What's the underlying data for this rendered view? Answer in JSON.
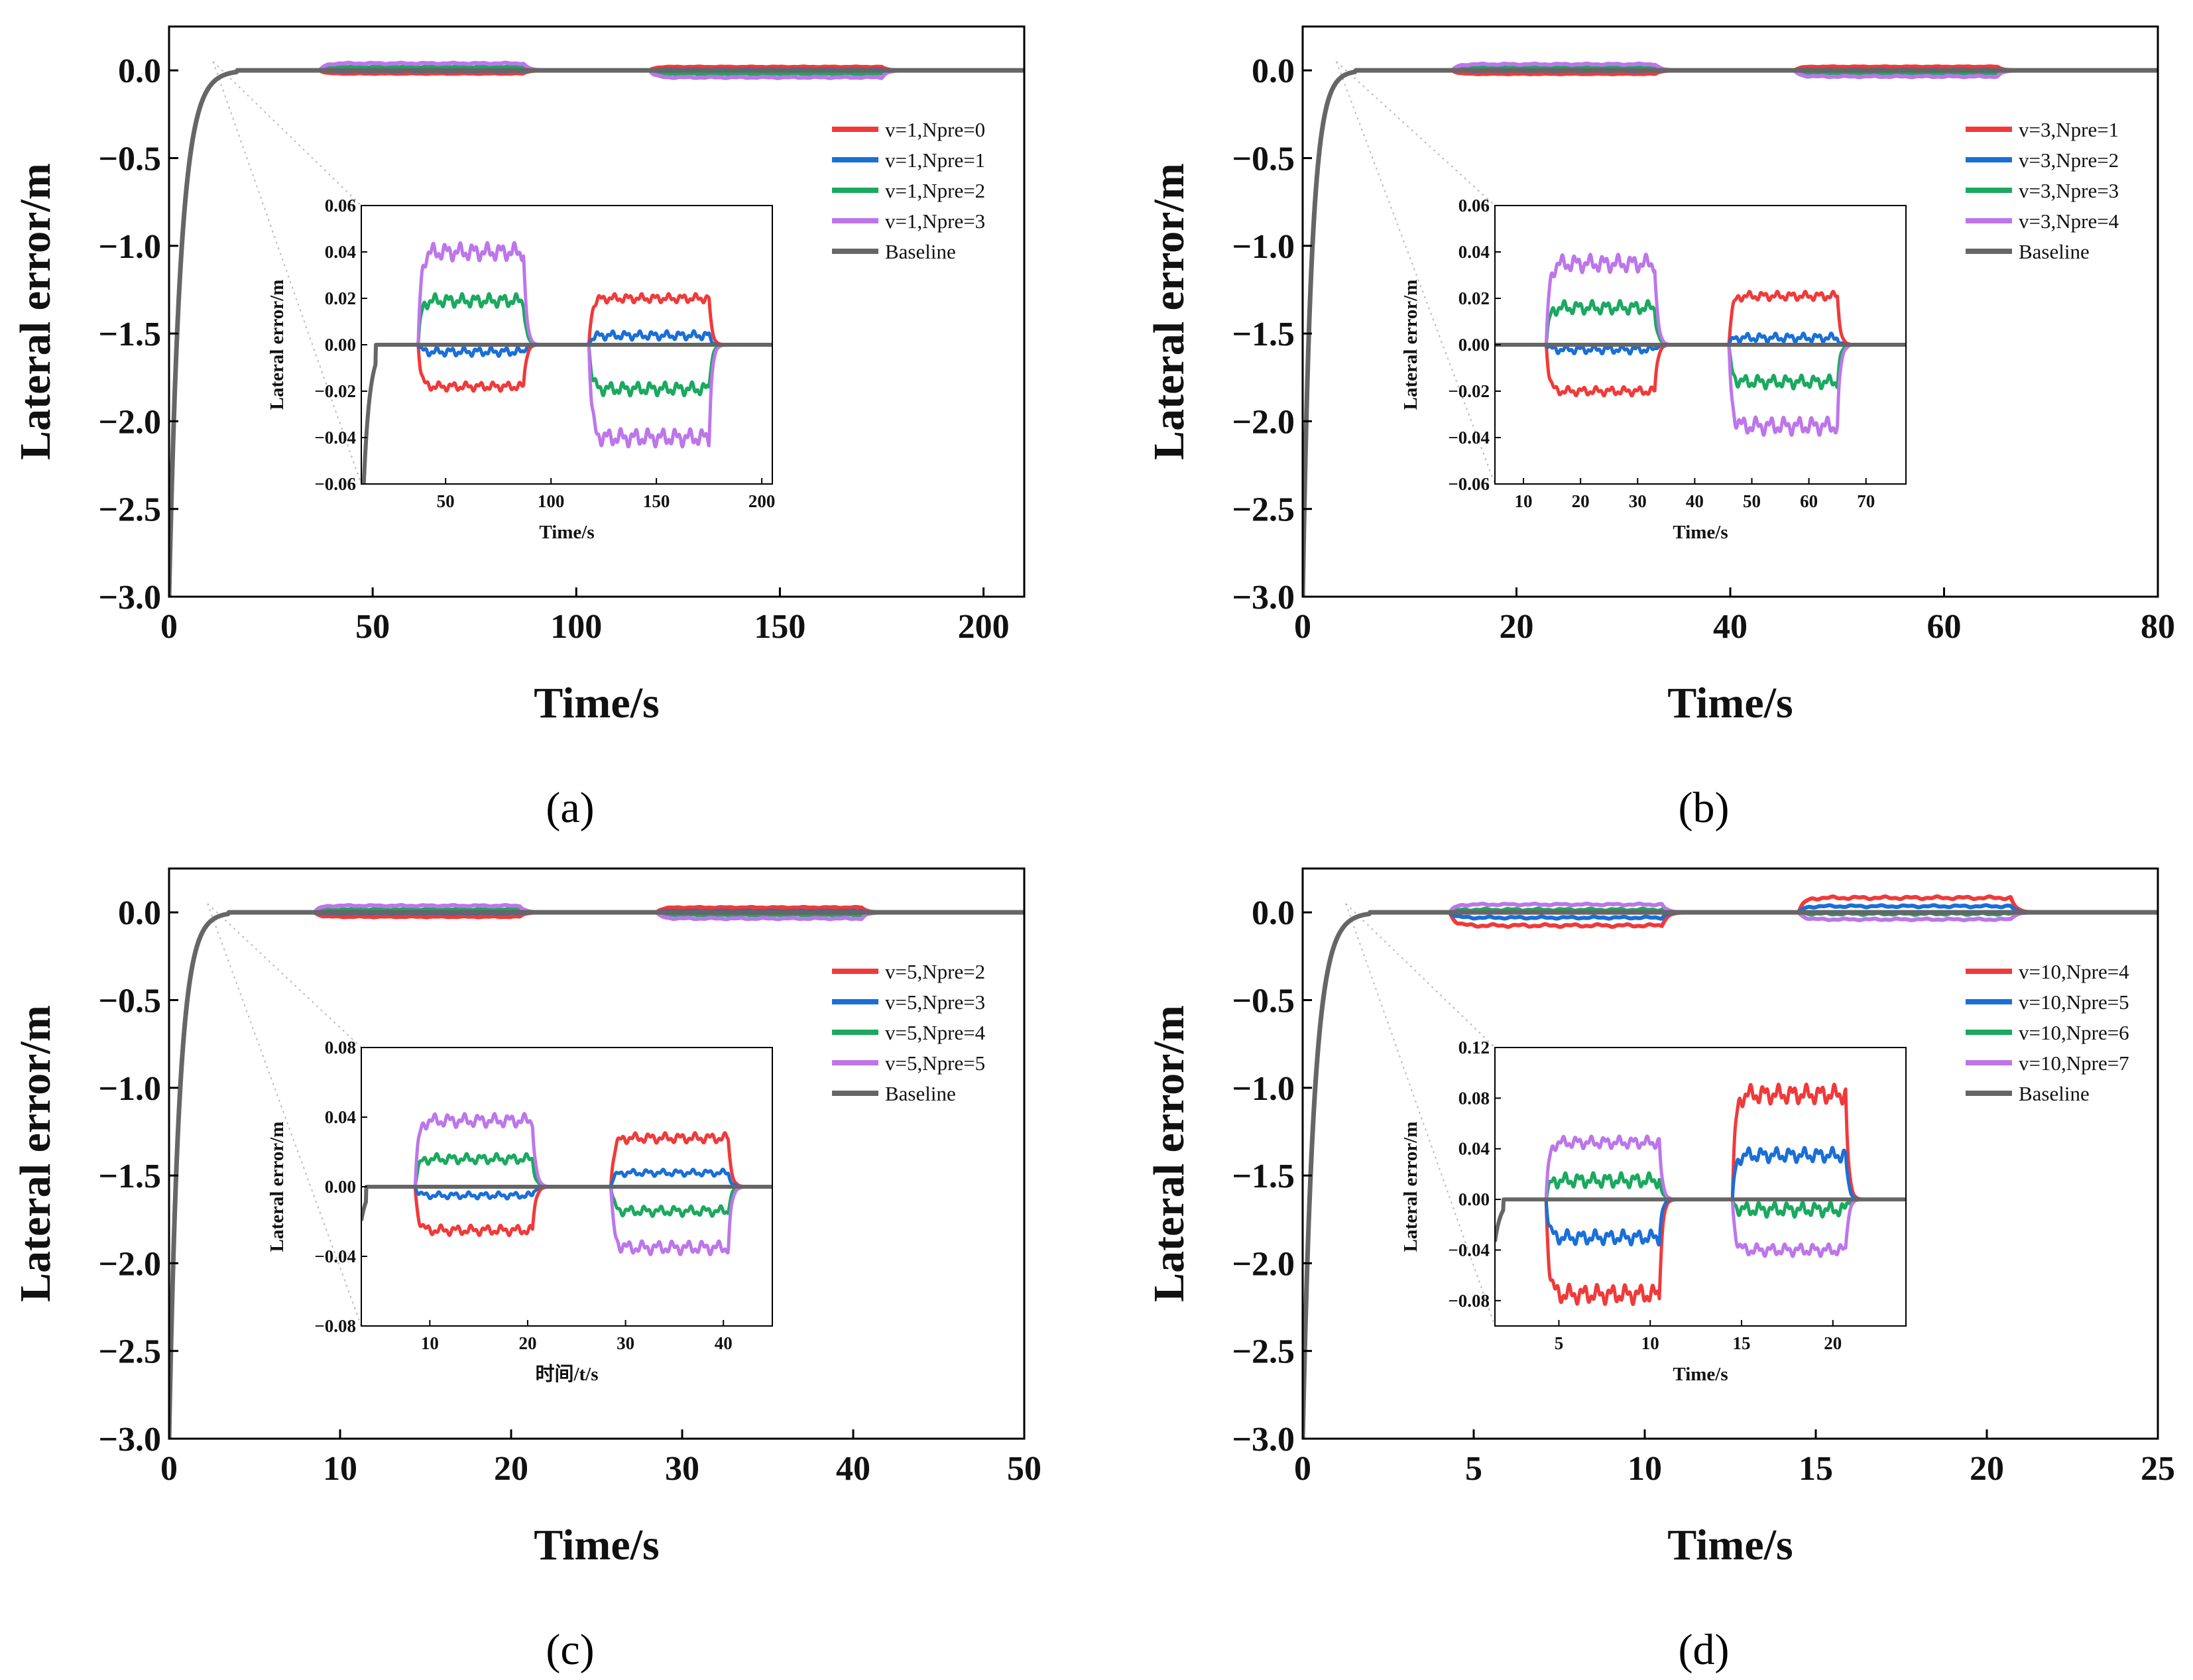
{
  "colors": {
    "red": "#f03a3a",
    "blue": "#1a6fd6",
    "green": "#1aa95f",
    "purple": "#bd76ea",
    "baseline": "#666666"
  },
  "chart_data": [
    {
      "type": "line",
      "panel_label": "(a)",
      "xlabel": "Time/s",
      "ylabel": "Lateral error/m",
      "xlim": [
        0,
        210
      ],
      "ylim": [
        -3.0,
        0.25
      ],
      "xticks": [
        0,
        50,
        100,
        150,
        200
      ],
      "xtick_labels": [
        "0",
        "50",
        "100",
        "150",
        "200"
      ],
      "yticks": [
        0.0,
        -0.5,
        -1.0,
        -1.5,
        -2.0,
        -2.5,
        -3.0
      ],
      "ytick_labels": [
        "0.0",
        "−0.5",
        "−1.0",
        "−1.5",
        "−2.0",
        "−2.5",
        "−3.0"
      ],
      "start_value": -3.0,
      "settle_time": 12,
      "segments": [
        [
          37,
          87
        ],
        [
          118,
          175
        ]
      ],
      "series": [
        {
          "name": "v=1,Npre=0",
          "color": "red",
          "seg_values": [
            -0.018,
            0.02
          ],
          "noise": 0.002
        },
        {
          "name": "v=1,Npre=1",
          "color": "blue",
          "seg_values": [
            -0.003,
            0.004
          ],
          "noise": 0.002
        },
        {
          "name": "v=1,Npre=2",
          "color": "green",
          "seg_values": [
            0.019,
            -0.019
          ],
          "noise": 0.003
        },
        {
          "name": "v=1,Npre=3",
          "color": "purple",
          "seg_values": [
            0.04,
            -0.04
          ],
          "noise": 0.004
        },
        {
          "name": "Baseline",
          "color": "baseline",
          "seg_values": [
            0,
            0
          ],
          "noise": 0
        }
      ],
      "inset": {
        "xlabel": "Time/s",
        "ylabel": "Lateral error/m",
        "xlim": [
          10,
          205
        ],
        "ylim": [
          -0.06,
          0.06
        ],
        "xticks": [
          50,
          100,
          150,
          200
        ],
        "xtick_labels": [
          "50",
          "100",
          "150",
          "200"
        ],
        "yticks": [
          0.06,
          0.04,
          0.02,
          0.0,
          -0.02,
          -0.04,
          -0.06
        ],
        "ytick_labels": [
          "0.06",
          "0.04",
          "0.02",
          "0.00",
          "−0.02",
          "−0.04",
          "−0.06"
        ]
      }
    },
    {
      "type": "line",
      "panel_label": "(b)",
      "xlabel": "Time/s",
      "ylabel": "Lateral error/m",
      "xlim": [
        0,
        80
      ],
      "ylim": [
        -3.0,
        0.25
      ],
      "xticks": [
        0,
        20,
        40,
        60,
        80
      ],
      "xtick_labels": [
        "0",
        "20",
        "40",
        "60",
        "80"
      ],
      "yticks": [
        0.0,
        -0.5,
        -1.0,
        -1.5,
        -2.0,
        -2.5,
        -3.0
      ],
      "ytick_labels": [
        "0.0",
        "−0.5",
        "−1.0",
        "−1.5",
        "−2.0",
        "−2.5",
        "−3.0"
      ],
      "start_value": -3.0,
      "settle_time": 3.5,
      "segments": [
        [
          14,
          33
        ],
        [
          46,
          65
        ]
      ],
      "series": [
        {
          "name": "v=3,Npre=1",
          "color": "red",
          "seg_values": [
            -0.02,
            0.021
          ],
          "noise": 0.002
        },
        {
          "name": "v=3,Npre=2",
          "color": "blue",
          "seg_values": [
            -0.002,
            0.003
          ],
          "noise": 0.002
        },
        {
          "name": "v=3,Npre=3",
          "color": "green",
          "seg_values": [
            0.016,
            -0.016
          ],
          "noise": 0.003
        },
        {
          "name": "v=3,Npre=4",
          "color": "purple",
          "seg_values": [
            0.035,
            -0.035
          ],
          "noise": 0.004
        },
        {
          "name": "Baseline",
          "color": "baseline",
          "seg_values": [
            0,
            0
          ],
          "noise": 0
        }
      ],
      "inset": {
        "xlabel": "Time/s",
        "ylabel": "Lateral error/m",
        "xlim": [
          5,
          77
        ],
        "ylim": [
          -0.06,
          0.06
        ],
        "xticks": [
          10,
          20,
          30,
          40,
          50,
          60,
          70
        ],
        "xtick_labels": [
          "10",
          "20",
          "30",
          "40",
          "50",
          "60",
          "70"
        ],
        "yticks": [
          0.06,
          0.04,
          0.02,
          0.0,
          -0.02,
          -0.04,
          -0.06
        ],
        "ytick_labels": [
          "0.06",
          "0.04",
          "0.02",
          "0.00",
          "−0.02",
          "−0.04",
          "−0.06"
        ]
      }
    },
    {
      "type": "line",
      "panel_label": "(c)",
      "xlabel": "Time/s",
      "ylabel": "Lateral error/m",
      "xlim": [
        0,
        50
      ],
      "ylim": [
        -3.0,
        0.25
      ],
      "xticks": [
        0,
        10,
        20,
        30,
        40,
        50
      ],
      "xtick_labels": [
        "0",
        "10",
        "20",
        "30",
        "40",
        "50"
      ],
      "yticks": [
        0.0,
        -0.5,
        -1.0,
        -1.5,
        -2.0,
        -2.5,
        -3.0
      ],
      "ytick_labels": [
        "0.0",
        "−0.5",
        "−1.0",
        "−1.5",
        "−2.0",
        "−2.5",
        "−3.0"
      ],
      "start_value": -3.0,
      "settle_time": 2.5,
      "segments": [
        [
          8.5,
          20.5
        ],
        [
          28.5,
          40.5
        ]
      ],
      "series": [
        {
          "name": "v=5,Npre=2",
          "color": "red",
          "seg_values": [
            -0.025,
            0.028
          ],
          "noise": 0.003
        },
        {
          "name": "v=5,Npre=3",
          "color": "blue",
          "seg_values": [
            -0.005,
            0.008
          ],
          "noise": 0.002
        },
        {
          "name": "v=5,Npre=4",
          "color": "green",
          "seg_values": [
            0.016,
            -0.014
          ],
          "noise": 0.003
        },
        {
          "name": "v=5,Npre=5",
          "color": "purple",
          "seg_values": [
            0.038,
            -0.035
          ],
          "noise": 0.004
        },
        {
          "name": "Baseline",
          "color": "baseline",
          "seg_values": [
            0,
            0
          ],
          "noise": 0
        }
      ],
      "inset": {
        "xlabel": "时间/t/s",
        "ylabel": "Lateral error/m",
        "xlim": [
          3,
          45
        ],
        "ylim": [
          -0.08,
          0.08
        ],
        "xticks": [
          10,
          20,
          30,
          40
        ],
        "xtick_labels": [
          "10",
          "20",
          "30",
          "40"
        ],
        "yticks": [
          0.08,
          0.04,
          0.0,
          -0.04,
          -0.08
        ],
        "ytick_labels": [
          "0.08",
          "0.04",
          "0.00",
          "−0.04",
          "−0.08"
        ]
      }
    },
    {
      "type": "line",
      "panel_label": "(d)",
      "xlabel": "Time/s",
      "ylabel": "Lateral error/m",
      "xlim": [
        0,
        25
      ],
      "ylim": [
        -3.0,
        0.25
      ],
      "xticks": [
        0,
        5,
        10,
        15,
        20,
        25
      ],
      "xtick_labels": [
        "0",
        "5",
        "10",
        "15",
        "20",
        "25"
      ],
      "yticks": [
        0.0,
        -0.5,
        -1.0,
        -1.5,
        -2.0,
        -2.5,
        -3.0
      ],
      "ytick_labels": [
        "0.0",
        "−0.5",
        "−1.0",
        "−1.5",
        "−2.0",
        "−2.5",
        "−3.0"
      ],
      "start_value": -3.0,
      "settle_time": 1.4,
      "segments": [
        [
          4.3,
          10.5
        ],
        [
          14.5,
          20.7
        ]
      ],
      "series": [
        {
          "name": "v=10,Npre=4",
          "color": "red",
          "seg_values": [
            -0.075,
            0.083
          ],
          "noise": 0.008
        },
        {
          "name": "v=10,Npre=5",
          "color": "blue",
          "seg_values": [
            -0.03,
            0.035
          ],
          "noise": 0.006
        },
        {
          "name": "v=10,Npre=6",
          "color": "green",
          "seg_values": [
            0.015,
            -0.008
          ],
          "noise": 0.006
        },
        {
          "name": "v=10,Npre=7",
          "color": "purple",
          "seg_values": [
            0.045,
            -0.04
          ],
          "noise": 0.005
        },
        {
          "name": "Baseline",
          "color": "baseline",
          "seg_values": [
            0,
            0
          ],
          "noise": 0
        }
      ],
      "inset": {
        "xlabel": "Time/s",
        "ylabel": "Lateral error/m",
        "xlim": [
          1.5,
          24
        ],
        "ylim": [
          -0.1,
          0.12
        ],
        "xticks": [
          5,
          10,
          15,
          20
        ],
        "xtick_labels": [
          "5",
          "10",
          "15",
          "20"
        ],
        "yticks": [
          0.12,
          0.08,
          0.04,
          0.0,
          -0.04,
          -0.08
        ],
        "ytick_labels": [
          "0.12",
          "0.08",
          "0.04",
          "0.00",
          "−0.04",
          "−0.08"
        ]
      }
    }
  ]
}
